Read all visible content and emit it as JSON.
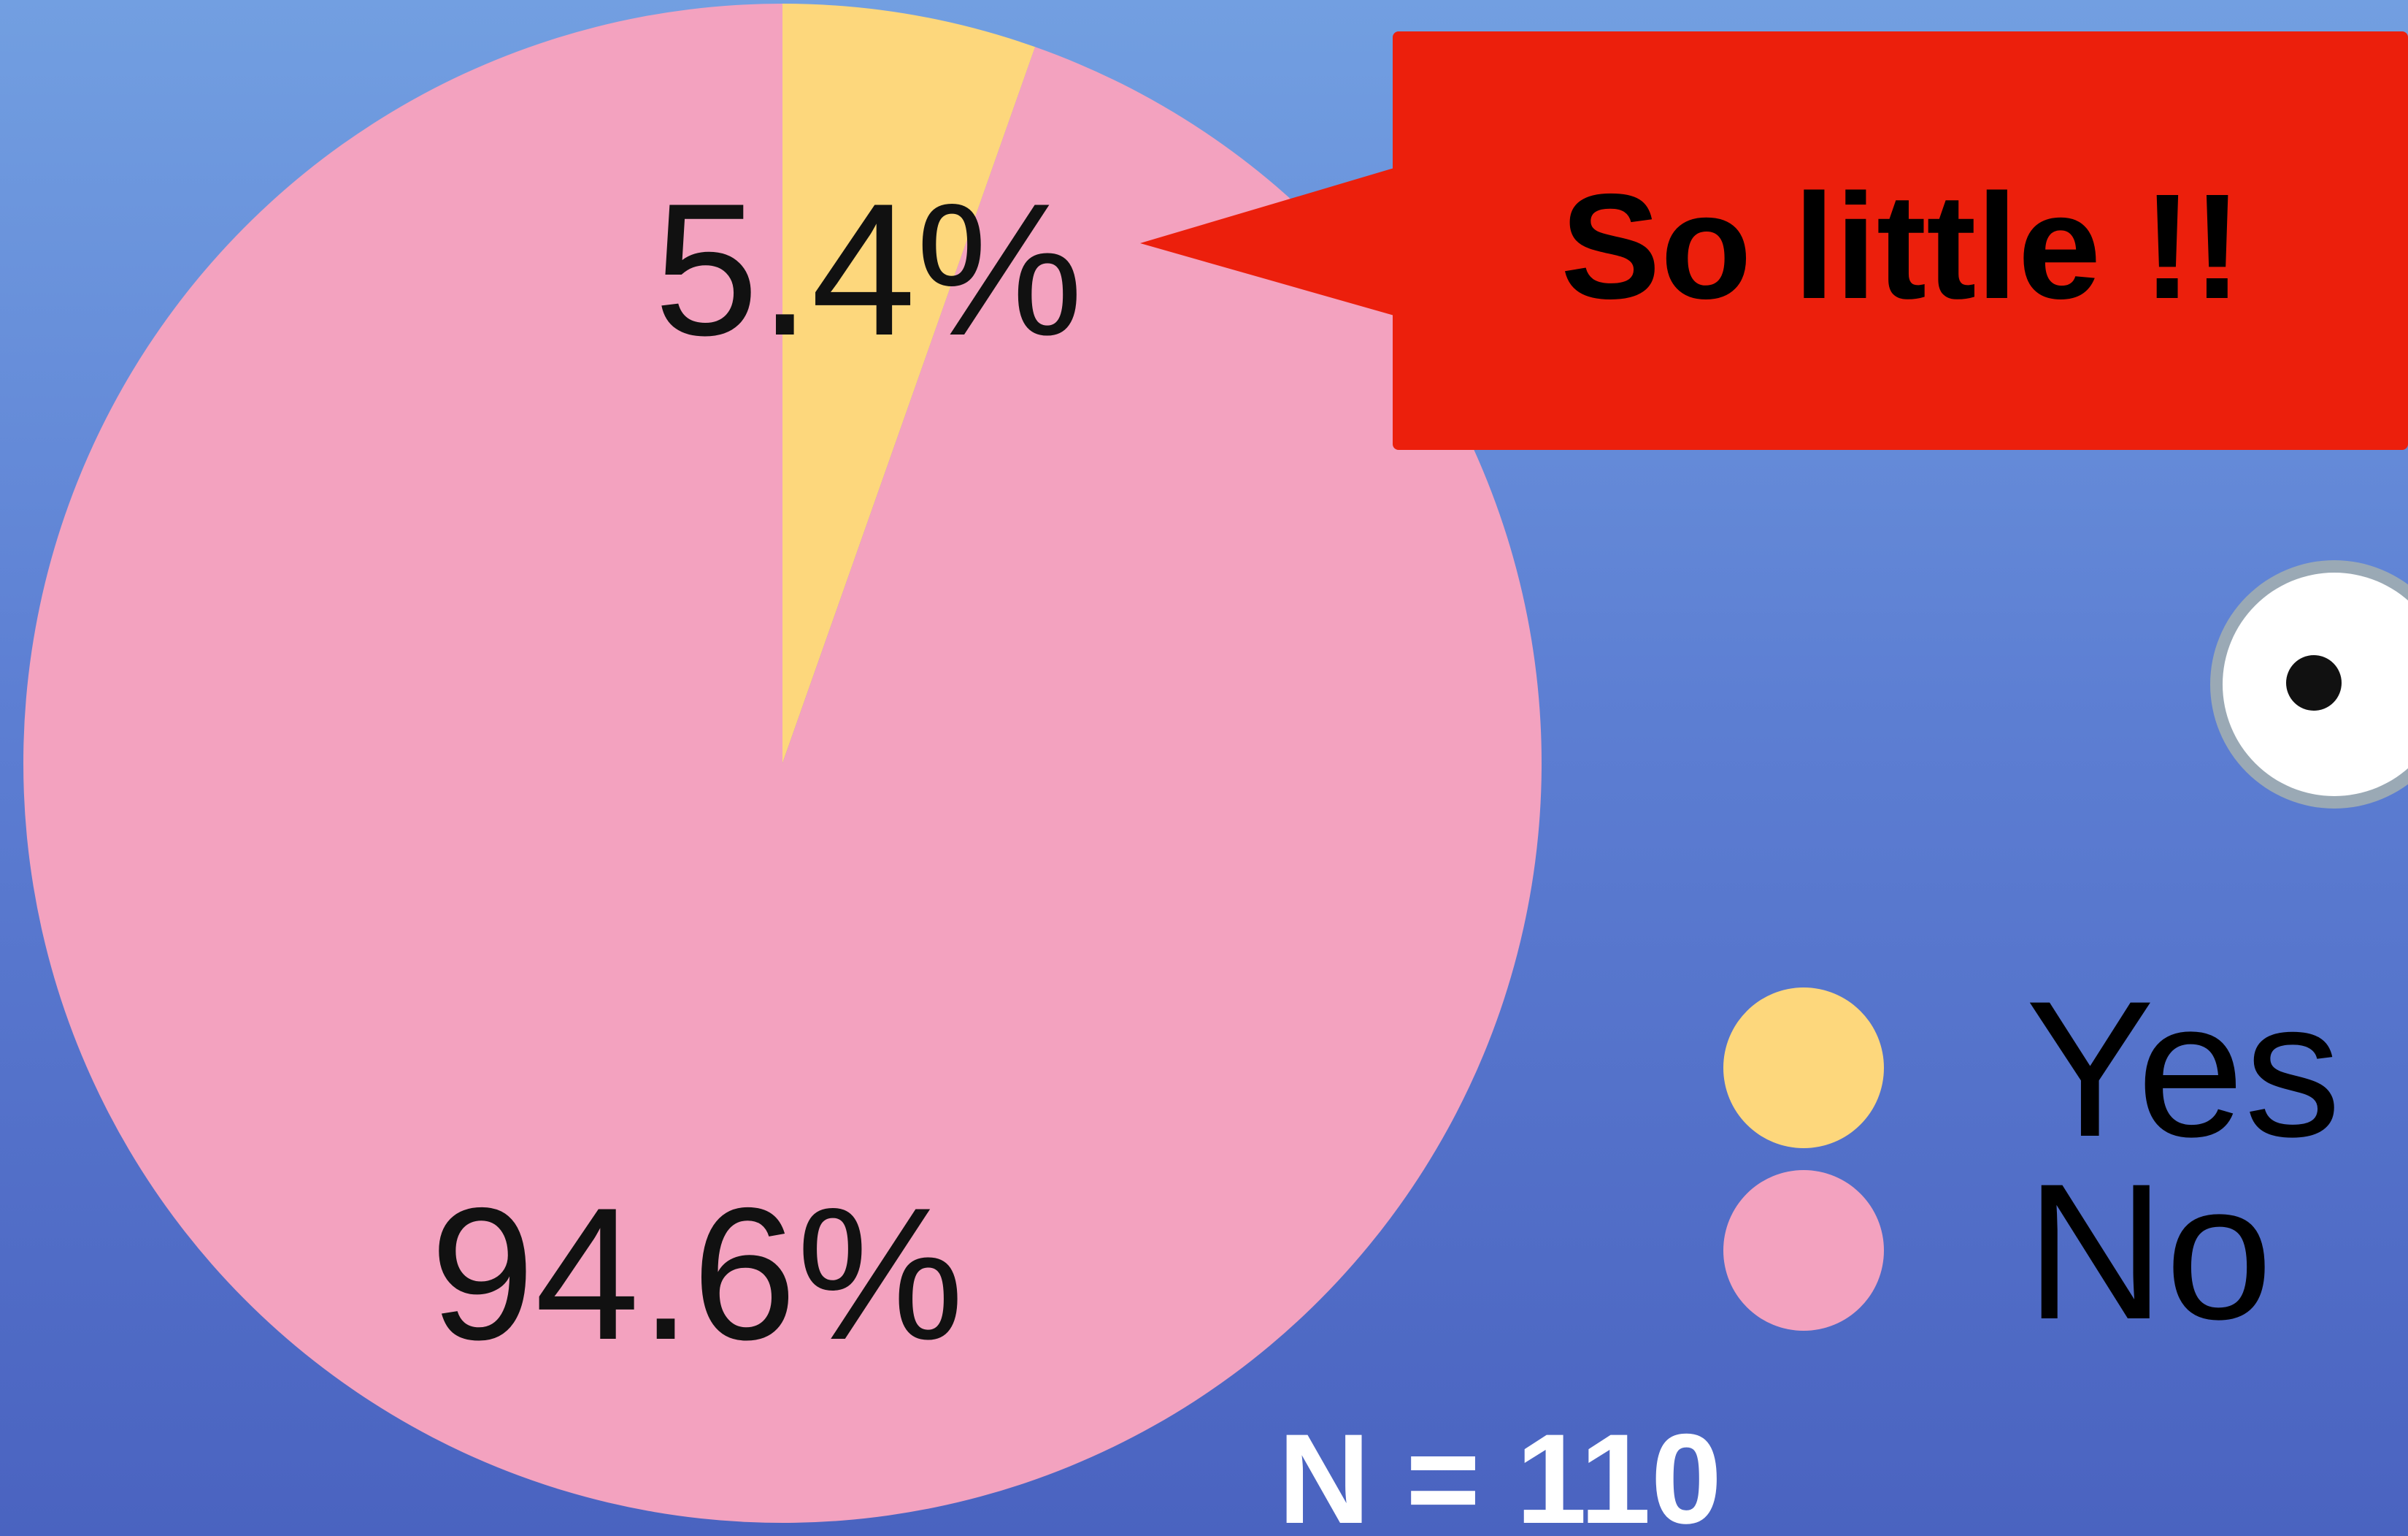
{
  "chart_data": {
    "type": "pie",
    "categories": [
      "Yes",
      "No"
    ],
    "values": [
      5.4,
      94.6
    ],
    "labels": [
      "5.4%",
      "94.6%"
    ],
    "colors": [
      "#fdd77c",
      "#f3a2bf"
    ],
    "legend_position": "right",
    "annotation": "So little !!",
    "sample_size": "N = 110"
  },
  "background": {
    "top": "#729fe1",
    "bottom": "#4a63c0"
  },
  "callout": {
    "color": "#ec1f0c"
  },
  "decorations": {
    "eye_icon": "eye-icon"
  }
}
